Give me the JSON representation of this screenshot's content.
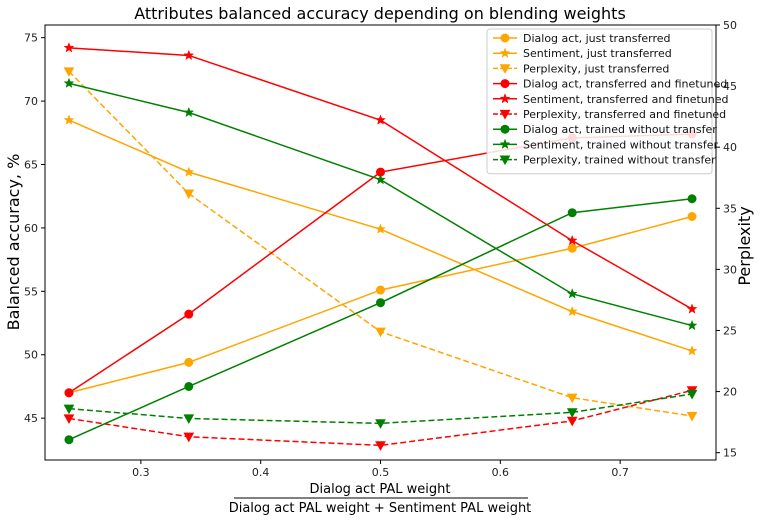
{
  "chart_data": {
    "type": "line",
    "title": "Attributes balanced accuracy depending on blending weights",
    "xlabel_numerator": "Dialog act PAL weight",
    "xlabel_denominator": "Dialog act PAL weight + Sentiment PAL weight",
    "ylabel_left": "Balanced accuracy, %",
    "ylabel_right": "Perplexity",
    "xlim": [
      0.22,
      0.78
    ],
    "ylim_left": [
      41.7,
      76
    ],
    "ylim_right": [
      14.4,
      50
    ],
    "xticks": [
      "0.3",
      "0.4",
      "0.5",
      "0.6",
      "0.7"
    ],
    "yticks_left": [
      "45",
      "50",
      "55",
      "60",
      "65",
      "70",
      "75"
    ],
    "yticks_right": [
      "15",
      "20",
      "25",
      "30",
      "35",
      "40",
      "45",
      "50"
    ],
    "x": [
      0.24,
      0.34,
      0.5,
      0.66,
      0.76
    ],
    "legend_position": "top-right",
    "series": [
      {
        "name": "Dialog act, just transferred",
        "axis": "left",
        "color": "#ffa500",
        "marker": "circle",
        "dash": "solid",
        "values": [
          47.0,
          49.4,
          55.1,
          58.4,
          60.9
        ]
      },
      {
        "name": "Sentiment, just transferred",
        "axis": "left",
        "color": "#ffa500",
        "marker": "star",
        "dash": "solid",
        "values": [
          68.5,
          64.4,
          59.9,
          53.4,
          50.3
        ]
      },
      {
        "name": "Perplexity, just transferred",
        "axis": "right",
        "color": "#ffa500",
        "marker": "triangle",
        "dash": "dashed",
        "values": [
          46.2,
          36.2,
          24.9,
          19.5,
          18.0
        ]
      },
      {
        "name": "Dialog act, transferred and finetuned",
        "axis": "left",
        "color": "#ff0000",
        "marker": "circle",
        "dash": "solid",
        "values": [
          47.0,
          53.2,
          64.4,
          67.1,
          67.4
        ]
      },
      {
        "name": "Sentiment, transferred and finetuned",
        "axis": "left",
        "color": "#ff0000",
        "marker": "star",
        "dash": "solid",
        "values": [
          74.2,
          73.6,
          68.5,
          59.0,
          53.6
        ]
      },
      {
        "name": "Perplexity, transferred and finetuned",
        "axis": "right",
        "color": "#ff0000",
        "marker": "triangle",
        "dash": "dashed",
        "values": [
          17.8,
          16.3,
          15.6,
          17.6,
          20.1
        ]
      },
      {
        "name": "Dialog act, trained without transfer",
        "axis": "left",
        "color": "#008000",
        "marker": "circle",
        "dash": "solid",
        "values": [
          43.3,
          47.5,
          54.1,
          61.2,
          62.3
        ]
      },
      {
        "name": "Sentiment, trained without transfer",
        "axis": "left",
        "color": "#008000",
        "marker": "star",
        "dash": "solid",
        "values": [
          71.4,
          69.1,
          63.8,
          54.8,
          52.3
        ]
      },
      {
        "name": "Perplexity, trained without transfer",
        "axis": "right",
        "color": "#008000",
        "marker": "triangle",
        "dash": "dashed",
        "values": [
          18.6,
          17.8,
          17.4,
          18.3,
          19.8
        ]
      }
    ]
  }
}
